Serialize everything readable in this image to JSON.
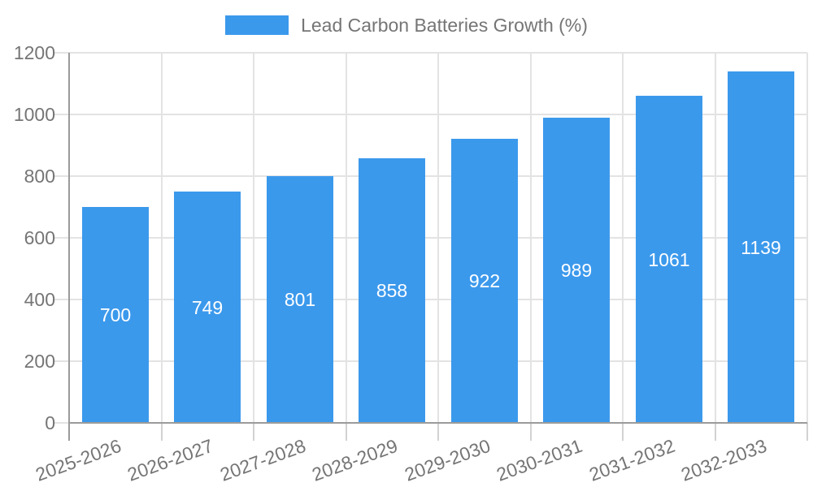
{
  "legend": {
    "label": "Lead Carbon Batteries Growth (%)"
  },
  "chart_data": {
    "type": "bar",
    "title": "Lead Carbon Batteries Growth (%)",
    "categories": [
      "2025-2026",
      "2026-2027",
      "2027-2028",
      "2028-2029",
      "2029-2030",
      "2030-2031",
      "2031-2032",
      "2032-2033"
    ],
    "values": [
      700,
      749,
      801,
      858,
      922,
      989,
      1061,
      1139
    ],
    "xlabel": "",
    "ylabel": "",
    "ylim": [
      0,
      1200
    ],
    "ytick_step": 200,
    "grid": true,
    "legend_position": "top",
    "colors": {
      "bar": "#3B99EC",
      "value_label": "#ffffff",
      "axis_line": "#9B9B9B",
      "grid_line": "#E3E3E3",
      "tick_mark": "#D2D2D2",
      "tick_text": "#757575"
    }
  }
}
